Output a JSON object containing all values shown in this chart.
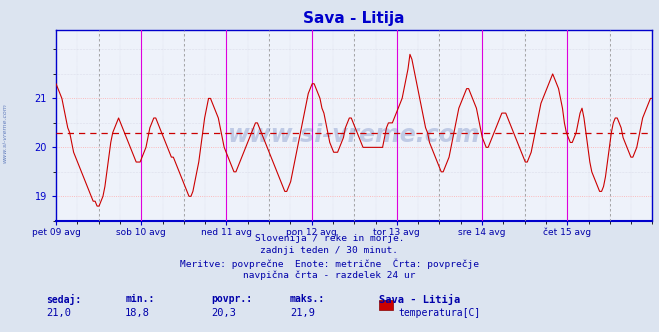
{
  "title": "Sava - Litija",
  "bg_color": "#dce4f0",
  "plot_bg_color": "#eef2fa",
  "line_color": "#cc0000",
  "avg_line_color": "#cc0000",
  "avg_line_value": 20.3,
  "ylim": [
    18.5,
    22.4
  ],
  "yticks": [
    19,
    20,
    21
  ],
  "grid_color_major": "#ffaaaa",
  "grid_color_minor": "#ccccdd",
  "vline_color_day": "#dd00dd",
  "vline_color_mid": "#999999",
  "axis_color": "#0000cc",
  "text_color": "#0000aa",
  "title_color": "#0000cc",
  "xticklabels": [
    "pet 09 avg",
    "sob 10 avg",
    "ned 11 avg",
    "pon 12 avg",
    "tor 13 avg",
    "sre 14 avg",
    "čet 15 avg"
  ],
  "xtick_positions": [
    0.0,
    48.0,
    96.0,
    144.0,
    192.0,
    240.0,
    288.0
  ],
  "footer_lines": [
    "Slovenija / reke in morje.",
    "zadnji teden / 30 minut.",
    "Meritve: povprečne  Enote: metrične  Črta: povprečje",
    "navpična črta - razdelek 24 ur"
  ],
  "stats_labels": [
    "sedaj:",
    "min.:",
    "povpr.:",
    "maks.:"
  ],
  "stats_values": [
    "21,0",
    "18,8",
    "20,3",
    "21,9"
  ],
  "legend_label": "Sava - Litija",
  "legend_sublabel": "temperatura[C]",
  "legend_color": "#cc0000",
  "watermark_text": "www.si-vreme.com",
  "watermark_color": "#3355aa",
  "watermark_alpha": 0.25,
  "sidebar_text": "www.si-vreme.com",
  "sidebar_color": "#3355aa",
  "temp_data": [
    21.3,
    21.2,
    21.1,
    21.0,
    20.8,
    20.6,
    20.4,
    20.3,
    20.1,
    19.9,
    19.8,
    19.7,
    19.6,
    19.5,
    19.4,
    19.3,
    19.2,
    19.1,
    19.0,
    18.9,
    18.9,
    18.8,
    18.8,
    18.9,
    19.0,
    19.2,
    19.5,
    19.8,
    20.1,
    20.3,
    20.4,
    20.5,
    20.6,
    20.5,
    20.4,
    20.3,
    20.2,
    20.1,
    20.0,
    19.9,
    19.8,
    19.7,
    19.7,
    19.7,
    19.8,
    19.9,
    20.0,
    20.2,
    20.4,
    20.5,
    20.6,
    20.6,
    20.5,
    20.4,
    20.3,
    20.2,
    20.1,
    20.0,
    19.9,
    19.8,
    19.8,
    19.7,
    19.6,
    19.5,
    19.4,
    19.3,
    19.2,
    19.1,
    19.0,
    19.0,
    19.1,
    19.3,
    19.5,
    19.7,
    20.0,
    20.3,
    20.6,
    20.8,
    21.0,
    21.0,
    20.9,
    20.8,
    20.7,
    20.6,
    20.4,
    20.2,
    20.0,
    19.9,
    19.8,
    19.7,
    19.6,
    19.5,
    19.5,
    19.6,
    19.7,
    19.8,
    19.9,
    20.0,
    20.1,
    20.2,
    20.3,
    20.4,
    20.5,
    20.5,
    20.4,
    20.3,
    20.2,
    20.1,
    20.0,
    19.9,
    19.8,
    19.7,
    19.6,
    19.5,
    19.4,
    19.3,
    19.2,
    19.1,
    19.1,
    19.2,
    19.3,
    19.5,
    19.7,
    19.9,
    20.1,
    20.3,
    20.5,
    20.7,
    20.9,
    21.1,
    21.2,
    21.3,
    21.3,
    21.2,
    21.1,
    21.0,
    20.8,
    20.7,
    20.5,
    20.3,
    20.1,
    20.0,
    19.9,
    19.9,
    19.9,
    20.0,
    20.1,
    20.2,
    20.4,
    20.5,
    20.6,
    20.6,
    20.5,
    20.4,
    20.3,
    20.2,
    20.1,
    20.0,
    20.0,
    20.0,
    20.0,
    20.0,
    20.0,
    20.0,
    20.0,
    20.0,
    20.0,
    20.0,
    20.2,
    20.4,
    20.5,
    20.5,
    20.5,
    20.6,
    20.7,
    20.8,
    20.9,
    21.0,
    21.2,
    21.4,
    21.6,
    21.9,
    21.8,
    21.6,
    21.4,
    21.2,
    21.0,
    20.8,
    20.6,
    20.4,
    20.3,
    20.1,
    20.0,
    19.9,
    19.8,
    19.7,
    19.6,
    19.5,
    19.5,
    19.6,
    19.7,
    19.8,
    20.0,
    20.2,
    20.4,
    20.6,
    20.8,
    20.9,
    21.0,
    21.1,
    21.2,
    21.2,
    21.1,
    21.0,
    20.9,
    20.8,
    20.6,
    20.4,
    20.2,
    20.1,
    20.0,
    20.0,
    20.1,
    20.2,
    20.3,
    20.4,
    20.5,
    20.6,
    20.7,
    20.7,
    20.7,
    20.6,
    20.5,
    20.4,
    20.3,
    20.2,
    20.1,
    20.0,
    19.9,
    19.8,
    19.7,
    19.7,
    19.8,
    19.9,
    20.1,
    20.3,
    20.5,
    20.7,
    20.9,
    21.0,
    21.1,
    21.2,
    21.3,
    21.4,
    21.5,
    21.4,
    21.3,
    21.2,
    21.0,
    20.8,
    20.5,
    20.3,
    20.2,
    20.1,
    20.1,
    20.2,
    20.3,
    20.5,
    20.7,
    20.8,
    20.6,
    20.3,
    20.0,
    19.7,
    19.5,
    19.4,
    19.3,
    19.2,
    19.1,
    19.1,
    19.2,
    19.4,
    19.7,
    20.0,
    20.3,
    20.5,
    20.6,
    20.6,
    20.5,
    20.4,
    20.2,
    20.1,
    20.0,
    19.9,
    19.8,
    19.8,
    19.9,
    20.0,
    20.2,
    20.4,
    20.6,
    20.7,
    20.8,
    20.9,
    21.0,
    21.0
  ],
  "vline_positions_day": [
    48,
    96,
    144,
    192,
    240,
    288
  ],
  "vline_positions_mid": [
    24,
    72,
    120,
    168,
    216,
    264,
    312
  ]
}
